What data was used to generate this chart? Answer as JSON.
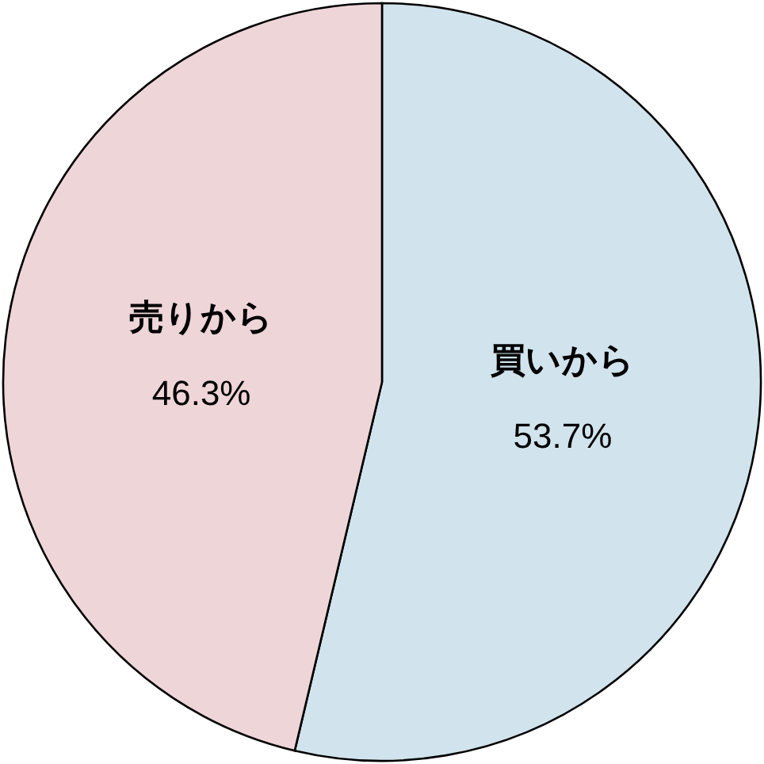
{
  "chart_data": {
    "type": "pie",
    "categories": [
      "買いから",
      "売りから"
    ],
    "values": [
      53.7,
      46.3
    ],
    "colors": [
      "#d1e3ec",
      "#eed5d8"
    ],
    "value_labels": [
      "53.7%",
      "46.3%"
    ]
  }
}
